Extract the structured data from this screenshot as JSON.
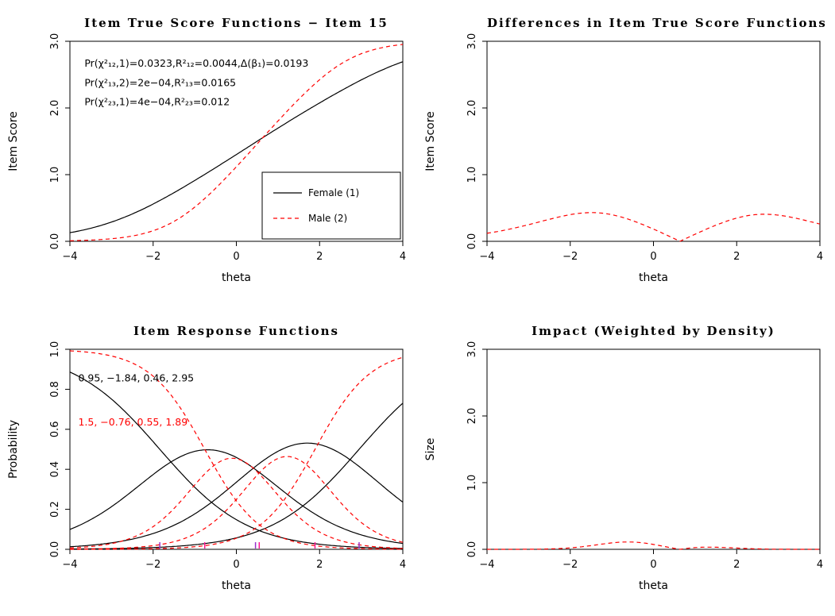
{
  "page": {
    "background": "#ffffff"
  },
  "colors": {
    "axis": "#000000",
    "female": "#000000",
    "male": "#ff0000",
    "rug_female": "#9932cc",
    "rug_male": "#ff1493"
  },
  "chart_data": [
    {
      "id": "item-true-score",
      "type": "line",
      "title": "Item True Score Functions − Item 15",
      "xlabel": "theta",
      "ylabel": "Item Score",
      "xlim": [
        -4,
        4
      ],
      "ylim": [
        0,
        3
      ],
      "grid": false,
      "xticks": [
        -4,
        -2,
        0,
        2,
        4
      ],
      "xtick_labels": [
        "−4",
        "−2",
        "0",
        "2",
        "4"
      ],
      "yticks": [
        0,
        1,
        2,
        3
      ],
      "ytick_labels": [
        "0.0",
        "1.0",
        "2.0",
        "3.0"
      ],
      "annotations": [
        {
          "text": "Pr(χ²₁₂,1)=0.0323,R²₁₂=0.0044,Δ(β₁)=0.0193",
          "x": -3.65,
          "y": 2.62,
          "color": "#000000"
        },
        {
          "text": "Pr(χ²₁₃,2)=2e−04,R²₁₃=0.0165",
          "x": -3.65,
          "y": 2.33,
          "color": "#000000"
        },
        {
          "text": "Pr(χ²₂₃,1)=4e−04,R²₂₃=0.012",
          "x": -3.65,
          "y": 2.04,
          "color": "#000000"
        }
      ],
      "legend": {
        "position": "bottomright",
        "entries": [
          {
            "label": "Female (1)",
            "color": "#000000",
            "dash": "solid"
          },
          {
            "label": "Male (2)",
            "color": "#ff0000",
            "dash": "dashed"
          }
        ]
      },
      "series": [
        {
          "name": "Female (1)",
          "color": "#000000",
          "dash": "solid",
          "model": {
            "kind": "grm_true_score",
            "a": 0.95,
            "b": [
              -1.84,
              0.46,
              2.95
            ]
          },
          "x": [
            -4,
            -3,
            -2,
            -1,
            0,
            1,
            2,
            3,
            4
          ],
          "y": [
            0.13,
            0.289,
            0.559,
            0.913,
            1.301,
            1.698,
            2.075,
            2.42,
            2.693
          ]
        },
        {
          "name": "Male (2)",
          "color": "#ff0000",
          "dash": "dashed",
          "model": {
            "kind": "grm_true_score",
            "a": 1.5,
            "b": [
              -0.76,
              0.55,
              1.89
            ]
          },
          "x": [
            -4,
            -3,
            -2,
            -1,
            0,
            1,
            2,
            3,
            4
          ],
          "y": [
            0.009,
            0.039,
            0.159,
            0.513,
            1.118,
            1.804,
            2.423,
            2.813,
            2.953
          ]
        }
      ]
    },
    {
      "id": "differences",
      "type": "line",
      "title": "Differences in Item True Score Functions",
      "xlabel": "theta",
      "ylabel": "Item Score",
      "xlim": [
        -4,
        4
      ],
      "ylim": [
        0,
        3
      ],
      "grid": false,
      "xticks": [
        -4,
        -2,
        0,
        2,
        4
      ],
      "xtick_labels": [
        "−4",
        "−2",
        "0",
        "2",
        "4"
      ],
      "yticks": [
        0,
        1,
        2,
        3
      ],
      "ytick_labels": [
        "0.0",
        "1.0",
        "2.0",
        "3.0"
      ],
      "series": [
        {
          "name": "abs difference Female − Male",
          "color": "#ff0000",
          "dash": "dashed",
          "model": {
            "kind": "abs_tcc_diff",
            "g1": {
              "a": 0.95,
              "b": [
                -1.84,
                0.46,
                2.95
              ]
            },
            "g2": {
              "a": 1.5,
              "b": [
                -0.76,
                0.55,
                1.89
              ]
            }
          },
          "x": [
            -4,
            -3,
            -2.5,
            -2,
            -1.5,
            -1,
            -0.5,
            0,
            0.5,
            1,
            1.5,
            2,
            2.5,
            3,
            3.5,
            4
          ],
          "y": [
            0.121,
            0.25,
            0.33,
            0.4,
            0.431,
            0.4,
            0.309,
            0.183,
            0.04,
            0.106,
            0.241,
            0.348,
            0.403,
            0.393,
            0.335,
            0.26
          ]
        }
      ]
    },
    {
      "id": "item-response-functions",
      "type": "line",
      "title": "Item Response Functions",
      "xlabel": "theta",
      "ylabel": "Probability",
      "xlim": [
        -4,
        4
      ],
      "ylim": [
        0,
        1
      ],
      "grid": false,
      "xticks": [
        -4,
        -2,
        0,
        2,
        4
      ],
      "xtick_labels": [
        "−4",
        "−2",
        "0",
        "2",
        "4"
      ],
      "yticks": [
        0,
        0.2,
        0.4,
        0.6,
        0.8,
        1
      ],
      "ytick_labels": [
        "0.0",
        "0.2",
        "0.4",
        "0.6",
        "0.8",
        "1.0"
      ],
      "annotations": [
        {
          "text": "0.95, −1.84, 0.46, 2.95",
          "x": -3.8,
          "y": 0.84,
          "color": "#000000"
        },
        {
          "text": "1.5, −0.76, 0.55, 1.89",
          "x": -3.8,
          "y": 0.62,
          "color": "#ff0000"
        }
      ],
      "rug": [
        {
          "name": "female-thresholds",
          "color": "#9932cc",
          "positions": [
            -1.84,
            0.46,
            2.95
          ]
        },
        {
          "name": "male-thresholds",
          "color": "#ff1493",
          "positions": [
            -0.76,
            0.55,
            1.89
          ]
        }
      ],
      "series": [
        {
          "name": "female-cat0",
          "color": "#000000",
          "dash": "solid",
          "model": {
            "kind": "grm_category",
            "a": 0.95,
            "b": [
              -1.84,
              0.46,
              2.95
            ],
            "k": 0
          },
          "x": [
            -4,
            -3,
            -2,
            -1,
            0,
            1,
            2,
            3,
            4
          ],
          "y": [
            0.886,
            0.751,
            0.538,
            0.31,
            0.148,
            0.063,
            0.025,
            0.01,
            0.004
          ]
        },
        {
          "name": "female-cat1",
          "color": "#000000",
          "dash": "solid",
          "model": {
            "kind": "grm_category",
            "a": 0.95,
            "b": [
              -1.84,
              0.46,
              2.95
            ],
            "k": 1
          },
          "x": [
            -4,
            -3,
            -2,
            -1,
            0,
            1,
            2,
            3,
            4
          ],
          "y": [
            0.1,
            0.213,
            0.374,
            0.49,
            0.459,
            0.312,
            0.163,
            0.072,
            0.03
          ]
        },
        {
          "name": "female-cat2",
          "color": "#000000",
          "dash": "solid",
          "model": {
            "kind": "grm_category",
            "a": 0.95,
            "b": [
              -1.84,
              0.46,
              2.95
            ],
            "k": 2
          },
          "x": [
            -4,
            -3,
            -2,
            -1,
            0,
            1,
            2,
            3,
            4
          ],
          "y": [
            0.013,
            0.033,
            0.079,
            0.177,
            0.335,
            0.49,
            0.523,
            0.406,
            0.236
          ]
        },
        {
          "name": "female-cat3",
          "color": "#000000",
          "dash": "solid",
          "model": {
            "kind": "grm_category",
            "a": 0.95,
            "b": [
              -1.84,
              0.46,
              2.95
            ],
            "k": 3
          },
          "x": [
            -4,
            -3,
            -2,
            -1,
            0,
            1,
            2,
            3,
            4
          ],
          "y": [
            0.001,
            0.004,
            0.009,
            0.023,
            0.057,
            0.136,
            0.289,
            0.512,
            0.731
          ]
        },
        {
          "name": "male-cat0",
          "color": "#ff0000",
          "dash": "dashed",
          "model": {
            "kind": "grm_category",
            "a": 1.5,
            "b": [
              -0.76,
              0.55,
              1.89
            ],
            "k": 0
          },
          "x": [
            -4,
            -3,
            -2,
            -1,
            0,
            1,
            2,
            3,
            4
          ],
          "y": [
            0.992,
            0.966,
            0.865,
            0.589,
            0.242,
            0.067,
            0.016,
            0.004,
            0.001
          ]
        },
        {
          "name": "male-cat1",
          "color": "#ff0000",
          "dash": "dashed",
          "model": {
            "kind": "grm_category",
            "a": 1.5,
            "b": [
              -0.76,
              0.55,
              1.89
            ],
            "k": 1
          },
          "x": [
            -4,
            -3,
            -2,
            -1,
            0,
            1,
            2,
            3,
            4
          ],
          "y": [
            0.007,
            0.029,
            0.113,
            0.322,
            0.453,
            0.271,
            0.086,
            0.021,
            0.005
          ]
        },
        {
          "name": "male-cat2",
          "color": "#ff0000",
          "dash": "dashed",
          "model": {
            "kind": "grm_category",
            "a": 1.5,
            "b": [
              -0.76,
              0.55,
              1.89
            ],
            "k": 2
          },
          "x": [
            -4,
            -3,
            -2,
            -1,
            0,
            1,
            2,
            3,
            4
          ],
          "y": [
            0.001,
            0.004,
            0.019,
            0.076,
            0.249,
            0.454,
            0.357,
            0.134,
            0.035
          ]
        },
        {
          "name": "male-cat3",
          "color": "#ff0000",
          "dash": "dashed",
          "model": {
            "kind": "grm_category",
            "a": 1.5,
            "b": [
              -0.76,
              0.55,
              1.89
            ],
            "k": 3
          },
          "x": [
            -4,
            -3,
            -2,
            -1,
            0,
            1,
            2,
            3,
            4
          ],
          "y": [
            0.0,
            0.001,
            0.003,
            0.013,
            0.056,
            0.208,
            0.541,
            0.841,
            0.96
          ]
        }
      ]
    },
    {
      "id": "impact",
      "type": "line",
      "title": "Impact (Weighted by Density)",
      "xlabel": "theta",
      "ylabel": "Size",
      "xlim": [
        -4,
        4
      ],
      "ylim": [
        0,
        3
      ],
      "grid": false,
      "xticks": [
        -4,
        -2,
        0,
        2,
        4
      ],
      "xtick_labels": [
        "−4",
        "−2",
        "0",
        "2",
        "4"
      ],
      "yticks": [
        0,
        1,
        2,
        3
      ],
      "ytick_labels": [
        "0.0",
        "1.0",
        "2.0",
        "3.0"
      ],
      "series": [
        {
          "name": "impact",
          "color": "#ff0000",
          "dash": "dashed",
          "model": {
            "kind": "impact",
            "g1": {
              "a": 0.95,
              "b": [
                -1.84,
                0.46,
                2.95
              ]
            },
            "g2": {
              "a": 1.5,
              "b": [
                -0.76,
                0.55,
                1.89
              ]
            },
            "density": {
              "mean": 0,
              "sd": 1
            }
          },
          "x": [
            -4,
            -3,
            -2,
            -1.5,
            -1,
            -0.5,
            0,
            0.5,
            1,
            1.5,
            2,
            2.5,
            3,
            4
          ],
          "y": [
            0.0,
            0.001,
            0.022,
            0.056,
            0.097,
            0.109,
            0.073,
            0.014,
            0.026,
            0.031,
            0.019,
            0.007,
            0.002,
            0.0
          ]
        }
      ]
    }
  ]
}
